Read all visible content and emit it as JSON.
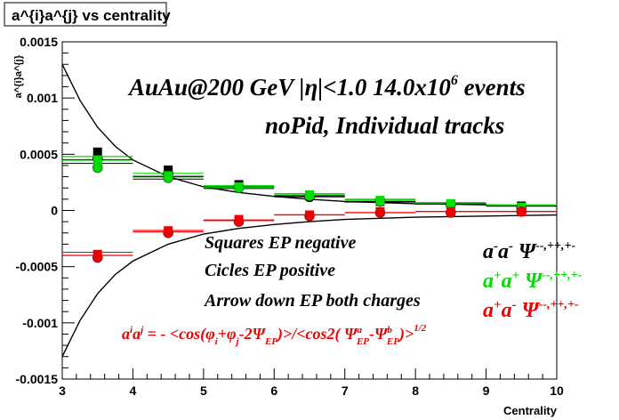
{
  "chart_data": {
    "type": "scatter",
    "title": "a^{i}a^{j} vs centrality",
    "xlabel": "Centrality",
    "ylabel": "a^{i}a^{j}",
    "xlim": [
      3,
      10
    ],
    "ylim": [
      -0.0015,
      0.0015
    ],
    "x_ticks": [
      3,
      4,
      5,
      6,
      7,
      8,
      9,
      10
    ],
    "x_tick_labels": [
      "3",
      "4",
      "5",
      "6",
      "7",
      "8",
      "9",
      "10"
    ],
    "y_ticks": [
      -0.0015,
      -0.001,
      -0.0005,
      0,
      0.0005,
      0.001,
      0.0015
    ],
    "y_tick_labels": [
      "-0.0015",
      "-0.001",
      "-0.0005",
      "0",
      "0.0005",
      "0.001",
      "0.0015"
    ],
    "annotations": {
      "line1": "AuAu@200 GeV |η|<1.0 14.0x10",
      "line1_sup": "6",
      "line1_end": " events",
      "line2": "noPid, Individual tracks",
      "squares": "Squares EP negative",
      "circles": "Cicles EP positive",
      "arrows": "Arrow down EP both charges",
      "formula_a": "a",
      "formula_i": "i",
      "formula_j": "j",
      "formula_eq": " = - <cos(φ",
      "formula_sub_i": "i",
      "formula_plus": "+φ",
      "formula_sub_j": "j",
      "formula_mid": "-2Ψ",
      "formula_sub_ep": "EP",
      "formula_close": ")>/<cos2( Ψ",
      "formula_sup_a": "a",
      "formula_sub_ep2": "EP",
      "formula_minus": "-Ψ",
      "formula_sup_b": "b",
      "formula_sub_ep3": "EP",
      "formula_end": ")>",
      "formula_pow": "1/2"
    },
    "legend": [
      {
        "base": "a",
        "s1": "-",
        "base2": "a",
        "s2": "-",
        "psi": "Ψ",
        "psis": "--,++,+-",
        "color": "#000000"
      },
      {
        "base": "a",
        "s1": "+",
        "base2": "a",
        "s2": "+",
        "psi": "Ψ",
        "psis": "--,++,+-",
        "color": "#00dd00"
      },
      {
        "base": "a",
        "s1": "+",
        "base2": "a",
        "s2": "-",
        "psi": "Ψ",
        "psis": "--,++,+-",
        "color": "#ee0000"
      }
    ],
    "curves": {
      "x": [
        3.0,
        3.25,
        3.5,
        3.75,
        4.0,
        4.5,
        5.0,
        5.5,
        6.0,
        6.5,
        7.0,
        8.0,
        9.0,
        10.0
      ],
      "upper": [
        0.0013,
        0.00098,
        0.00074,
        0.00057,
        0.00045,
        0.0003,
        0.00021,
        0.00016,
        0.000125,
        0.0001,
        8e-05,
        6e-05,
        5e-05,
        4e-05
      ],
      "lower": [
        -0.0013,
        -0.00098,
        -0.00074,
        -0.00057,
        -0.00045,
        -0.0003,
        -0.00021,
        -0.00016,
        -0.000125,
        -0.0001,
        -8e-05,
        -6e-05,
        -5e-05,
        -4e-05
      ]
    },
    "series": [
      {
        "key": "black",
        "color": "#000000",
        "x": [
          3.5,
          4.5,
          5.5,
          6.5,
          7.5,
          8.5,
          9.5
        ],
        "square": [
          0.00052,
          0.00036,
          0.00023,
          0.00013,
          8e-05,
          6e-05,
          4e-05
        ],
        "circle": [
          0.00046,
          0.00033,
          0.00021,
          0.00012,
          8e-05,
          5e-05,
          3e-05
        ],
        "band": [
          0.00045,
          0.0003,
          0.00021,
          0.00013,
          8e-05,
          6e-05,
          4e-05
        ]
      },
      {
        "key": "green",
        "color": "#00dd00",
        "x": [
          3.5,
          4.5,
          5.5,
          6.5,
          7.5,
          8.5,
          9.5
        ],
        "square": [
          0.00045,
          0.00031,
          0.00021,
          0.00014,
          9e-05,
          6e-05,
          3e-05
        ],
        "circle": [
          0.00038,
          0.00029,
          0.0002,
          0.00013,
          8e-05,
          5e-05,
          2e-05
        ],
        "band": [
          0.00048,
          0.00033,
          0.00022,
          0.00015,
          0.0001,
          7e-05,
          5e-05
        ]
      },
      {
        "key": "red",
        "color": "#ee0000",
        "x": [
          3.5,
          4.5,
          5.5,
          6.5,
          7.5,
          8.5,
          9.5
        ],
        "square": [
          -0.00039,
          -0.00018,
          -8e-05,
          -4e-05,
          -1e-05,
          -1e-05,
          -1e-05
        ],
        "circle": [
          -0.00042,
          -0.0002,
          -0.0001,
          -5e-05,
          -2e-05,
          -2e-05,
          -1e-05
        ],
        "band": [
          -0.0004,
          -0.00019,
          -9e-05,
          -4e-05,
          -2e-05,
          -1e-05,
          -1e-05
        ]
      }
    ]
  }
}
